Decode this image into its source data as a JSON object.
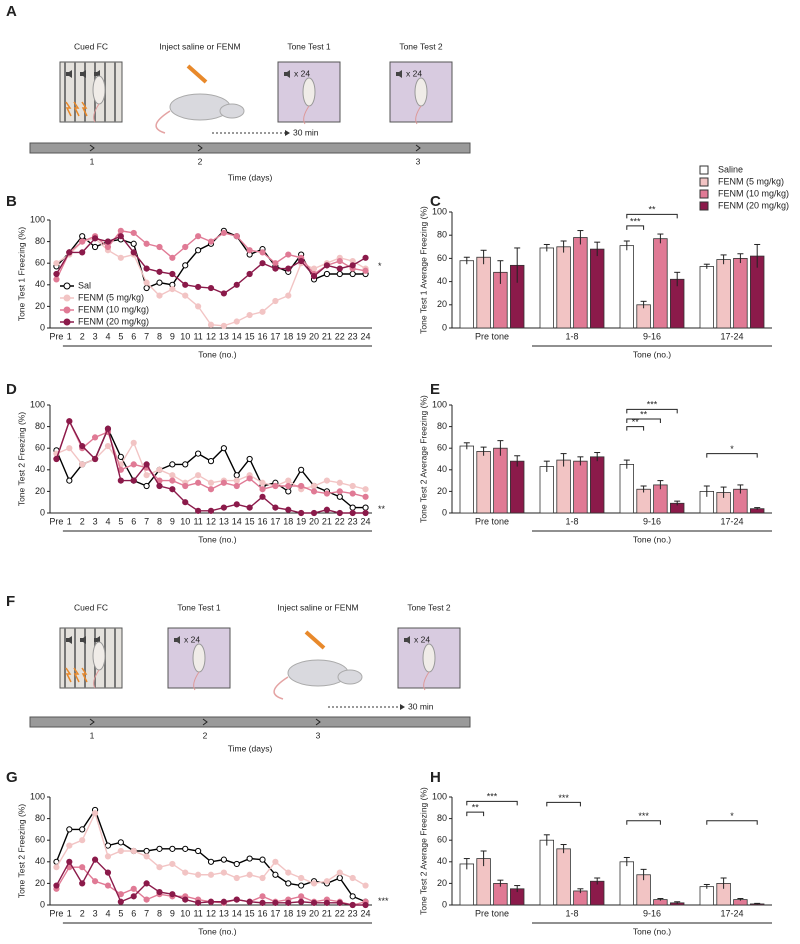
{
  "diagrams": [
    {
      "panel": "A",
      "steps": [
        "Cued FC",
        "Inject saline or FENM",
        "Tone Test 1",
        "Tone Test 2"
      ],
      "repeat": "x 24",
      "delay": "30 min",
      "timeline_ticks": [
        "1",
        "2",
        "3"
      ],
      "time_label": "Time (days)"
    },
    {
      "panel": "F",
      "steps": [
        "Cued FC",
        "Tone Test 1",
        "Inject saline or FENM",
        "Tone Test 2"
      ],
      "repeat": "x 24",
      "delay": "30 min",
      "timeline_ticks": [
        "1",
        "2",
        "3"
      ],
      "time_label": "Time (days)"
    }
  ],
  "chart_data": [
    {
      "type": "line",
      "panel": "B",
      "ylabel": "Tone Test 1 Freezing (%)",
      "xlabel": "Tone (no.)",
      "categories": [
        "Pre",
        "1",
        "2",
        "3",
        "4",
        "5",
        "6",
        "7",
        "8",
        "9",
        "10",
        "11",
        "12",
        "13",
        "14",
        "15",
        "16",
        "17",
        "18",
        "19",
        "20",
        "21",
        "22",
        "23",
        "24"
      ],
      "ylim": [
        0,
        100
      ],
      "yticks": [
        0,
        20,
        40,
        60,
        80,
        100
      ],
      "legend": "lower left",
      "annotations": [
        "*"
      ],
      "series": [
        {
          "name": "Sal",
          "color": "#ffffff",
          "values": [
            57,
            70,
            85,
            75,
            80,
            82,
            78,
            37,
            42,
            40,
            58,
            72,
            78,
            90,
            85,
            68,
            73,
            57,
            52,
            68,
            45,
            50,
            50,
            50,
            50
          ]
        },
        {
          "name": "FENM (5 mg/kg)",
          "color": "#f2c4c4",
          "values": [
            60,
            68,
            80,
            83,
            72,
            65,
            68,
            42,
            30,
            36,
            30,
            20,
            3,
            2,
            6,
            12,
            15,
            25,
            30,
            60,
            55,
            60,
            65,
            62,
            55
          ]
        },
        {
          "name": "FENM (10 mg/kg)",
          "color": "#e07a95",
          "values": [
            45,
            70,
            80,
            85,
            75,
            90,
            88,
            78,
            75,
            65,
            75,
            85,
            80,
            88,
            85,
            72,
            70,
            60,
            68,
            65,
            50,
            58,
            62,
            55,
            53
          ]
        },
        {
          "name": "FENM (20 mg/kg)",
          "color": "#8b1a4a",
          "values": [
            50,
            70,
            70,
            83,
            80,
            85,
            70,
            55,
            52,
            50,
            40,
            38,
            37,
            32,
            40,
            50,
            60,
            55,
            55,
            62,
            48,
            58,
            55,
            58,
            65
          ]
        }
      ]
    },
    {
      "type": "bar",
      "panel": "C",
      "ylabel": "Tone Test 1 Average Freezing (%)",
      "xlabel": "Tone (no.)",
      "categories": [
        "Pre tone",
        "1-8",
        "9-16",
        "17-24"
      ],
      "ylim": [
        0,
        100
      ],
      "yticks": [
        0,
        20,
        40,
        60,
        80,
        100
      ],
      "legend": "upper right",
      "annotations": [
        "***",
        "**"
      ],
      "series": [
        {
          "name": "Saline",
          "color": "#ffffff",
          "values": [
            58,
            69,
            71,
            53
          ],
          "errors": [
            3,
            3,
            4,
            2
          ]
        },
        {
          "name": "FENM (5 mg/kg)",
          "color": "#f2c4c4",
          "values": [
            61,
            70,
            20,
            59
          ],
          "errors": [
            6,
            5,
            3,
            4
          ]
        },
        {
          "name": "FENM (10 mg/kg)",
          "color": "#e07a95",
          "values": [
            48,
            78,
            77,
            60
          ],
          "errors": [
            10,
            6,
            4,
            4
          ]
        },
        {
          "name": "FENM (20 mg/kg)",
          "color": "#8b1a4a",
          "values": [
            54,
            68,
            42,
            62
          ],
          "errors": [
            15,
            6,
            6,
            10
          ]
        }
      ]
    },
    {
      "type": "line",
      "panel": "D",
      "ylabel": "Tone Test 2 Freezing (%)",
      "xlabel": "Tone (no.)",
      "categories": [
        "Pre",
        "1",
        "2",
        "3",
        "4",
        "5",
        "6",
        "7",
        "8",
        "9",
        "10",
        "11",
        "12",
        "13",
        "14",
        "15",
        "16",
        "17",
        "18",
        "19",
        "20",
        "21",
        "22",
        "23",
        "24"
      ],
      "ylim": [
        0,
        100
      ],
      "yticks": [
        0,
        20,
        40,
        60,
        80,
        100
      ],
      "annotations": [
        "**"
      ],
      "series": [
        {
          "color": "#ffffff",
          "values": [
            58,
            30,
            45,
            50,
            78,
            52,
            30,
            25,
            40,
            45,
            45,
            55,
            48,
            60,
            35,
            50,
            25,
            28,
            20,
            40,
            25,
            20,
            15,
            5,
            5
          ]
        },
        {
          "color": "#f2c4c4",
          "values": [
            55,
            60,
            45,
            50,
            62,
            45,
            65,
            35,
            40,
            35,
            28,
            35,
            28,
            30,
            30,
            35,
            28,
            25,
            30,
            22,
            25,
            30,
            28,
            25,
            22
          ]
        },
        {
          "color": "#e07a95",
          "values": [
            50,
            85,
            60,
            70,
            75,
            40,
            45,
            42,
            30,
            30,
            25,
            28,
            22,
            28,
            25,
            32,
            22,
            25,
            25,
            25,
            20,
            18,
            20,
            18,
            15
          ]
        },
        {
          "color": "#8b1a4a",
          "values": [
            50,
            85,
            62,
            50,
            78,
            30,
            30,
            45,
            25,
            22,
            10,
            2,
            2,
            5,
            8,
            5,
            15,
            5,
            3,
            0,
            0,
            3,
            0,
            0,
            0
          ]
        }
      ]
    },
    {
      "type": "bar",
      "panel": "E",
      "ylabel": "Tone Test 2 Average Freezing (%)",
      "xlabel": "Tone (no.)",
      "categories": [
        "Pre tone",
        "1-8",
        "9-16",
        "17-24"
      ],
      "ylim": [
        0,
        100
      ],
      "yticks": [
        0,
        20,
        40,
        60,
        80,
        100
      ],
      "annotations": [
        "**",
        "**",
        "***",
        "*"
      ],
      "series": [
        {
          "color": "#ffffff",
          "values": [
            62,
            43,
            45,
            20
          ],
          "errors": [
            3,
            5,
            4,
            5
          ]
        },
        {
          "color": "#f2c4c4",
          "values": [
            57,
            49,
            22,
            19
          ],
          "errors": [
            4,
            6,
            3,
            5
          ]
        },
        {
          "color": "#e07a95",
          "values": [
            60,
            48,
            26,
            22
          ],
          "errors": [
            7,
            4,
            4,
            4
          ]
        },
        {
          "color": "#8b1a4a",
          "values": [
            48,
            52,
            9,
            4
          ],
          "errors": [
            5,
            4,
            2,
            1
          ]
        }
      ]
    },
    {
      "type": "line",
      "panel": "G",
      "ylabel": "Tone Test 2 Freezing (%)",
      "xlabel": "Tone (no.)",
      "categories": [
        "Pre",
        "1",
        "2",
        "3",
        "4",
        "5",
        "6",
        "7",
        "8",
        "9",
        "10",
        "11",
        "12",
        "13",
        "14",
        "15",
        "16",
        "17",
        "18",
        "19",
        "20",
        "21",
        "22",
        "23",
        "24"
      ],
      "ylim": [
        0,
        100
      ],
      "yticks": [
        0,
        20,
        40,
        60,
        80,
        100
      ],
      "annotations": [
        "***"
      ],
      "series": [
        {
          "color": "#ffffff",
          "values": [
            40,
            70,
            70,
            88,
            55,
            58,
            50,
            50,
            52,
            52,
            52,
            50,
            40,
            42,
            38,
            43,
            42,
            28,
            20,
            18,
            22,
            20,
            25,
            8,
            3
          ]
        },
        {
          "color": "#f2c4c4",
          "values": [
            35,
            55,
            60,
            85,
            45,
            50,
            50,
            45,
            35,
            38,
            30,
            28,
            28,
            30,
            25,
            28,
            25,
            40,
            30,
            25,
            20,
            22,
            30,
            25,
            18
          ]
        },
        {
          "color": "#e07a95",
          "values": [
            15,
            35,
            35,
            22,
            18,
            10,
            15,
            5,
            10,
            8,
            8,
            5,
            3,
            2,
            5,
            3,
            8,
            3,
            5,
            8,
            3,
            5,
            3,
            0,
            3
          ]
        },
        {
          "color": "#8b1a4a",
          "values": [
            18,
            40,
            20,
            42,
            30,
            3,
            8,
            20,
            12,
            10,
            5,
            2,
            3,
            3,
            5,
            3,
            2,
            2,
            2,
            3,
            2,
            2,
            2,
            0,
            0
          ]
        }
      ]
    },
    {
      "type": "bar",
      "panel": "H",
      "ylabel": "Tone Test 2 Average Freezing (%)",
      "xlabel": "Tone (no.)",
      "categories": [
        "Pre tone",
        "1-8",
        "9-16",
        "17-24"
      ],
      "ylim": [
        0,
        100
      ],
      "yticks": [
        0,
        20,
        40,
        60,
        80,
        100
      ],
      "annotations": [
        "**",
        "***",
        "***",
        "***",
        "*"
      ],
      "series": [
        {
          "color": "#ffffff",
          "values": [
            38,
            60,
            40,
            17
          ],
          "errors": [
            5,
            5,
            4,
            2
          ]
        },
        {
          "color": "#f2c4c4",
          "values": [
            43,
            52,
            28,
            20
          ],
          "errors": [
            7,
            4,
            5,
            5
          ]
        },
        {
          "color": "#e07a95",
          "values": [
            20,
            13,
            5,
            5
          ],
          "errors": [
            3,
            2,
            1,
            1
          ]
        },
        {
          "color": "#8b1a4a",
          "values": [
            15,
            22,
            2,
            1
          ],
          "errors": [
            3,
            3,
            1,
            0.5
          ]
        }
      ]
    }
  ]
}
